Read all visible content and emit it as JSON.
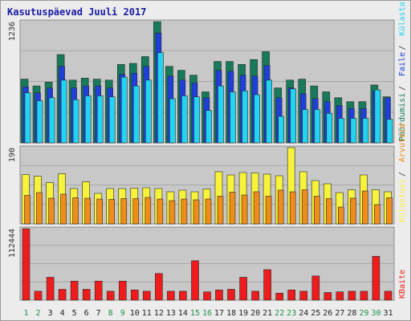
{
  "title": "Kasutuspäevad Juuli 2017",
  "colors": {
    "background": "#ececec",
    "panel": "#c8c8c8",
    "gridline": "#a8a8a8",
    "visits": "#177a5a",
    "pages": "#1f3fdb",
    "files": "#22d4f0",
    "hits": "#f7f23a",
    "sessions": "#f08c18",
    "bytes": "#ee1c1c",
    "label_weekday": "#222222",
    "label_weekend": "#1c8f4f",
    "title": "#1a1aa6"
  },
  "legend": {
    "upper": [
      {
        "key": "visits",
        "label": "Pöördumisi"
      },
      {
        "key": "pages",
        "label": "Faile"
      },
      {
        "key": "files",
        "label": "Külastatud lehti"
      }
    ],
    "middle": [
      {
        "key": "hits",
        "label": "Külastusi"
      },
      {
        "key": "sessions",
        "label": "Arvuteid"
      }
    ],
    "lower": [
      {
        "key": "bytes",
        "label": "KBaite"
      }
    ]
  },
  "chart_data": {
    "type": "bar",
    "title": "Kasutuspäevad Juuli 2017",
    "categories": [
      "1",
      "2",
      "3",
      "4",
      "5",
      "6",
      "7",
      "8",
      "9",
      "10",
      "11",
      "12",
      "13",
      "14",
      "15",
      "16",
      "17",
      "18",
      "19",
      "20",
      "21",
      "22",
      "23",
      "24",
      "25",
      "26",
      "27",
      "28",
      "29",
      "30",
      "31"
    ],
    "weekend_days": [
      "1",
      "2",
      "8",
      "9",
      "15",
      "16",
      "22",
      "23",
      "29",
      "30"
    ],
    "panels": [
      {
        "name": "upper",
        "ymax_label": "1236",
        "ylim": [
          0,
          1236
        ],
        "series": [
          {
            "name": "Pöördumisi",
            "color_key": "visits",
            "values": [
              650,
              580,
              620,
              900,
              640,
              660,
              650,
              640,
              800,
              810,
              880,
              1236,
              780,
              740,
              690,
              520,
              830,
              830,
              800,
              850,
              930,
              560,
              640,
              650,
              580,
              520,
              460,
              420,
              420,
              590,
              470
            ]
          },
          {
            "name": "Faile",
            "color_key": "pages",
            "values": [
              570,
              510,
              560,
              780,
              560,
              580,
              580,
              560,
              700,
              710,
              780,
              1120,
              680,
              640,
              610,
              460,
              740,
              730,
              690,
              680,
              790,
              460,
              560,
              500,
              450,
              420,
              380,
              350,
              350,
              530,
              460
            ]
          },
          {
            "name": "Külastatud lehti",
            "color_key": "files",
            "values": [
              510,
              430,
              460,
              640,
              440,
              480,
              480,
              470,
              670,
              580,
              640,
              920,
              450,
              480,
              470,
              330,
              580,
              520,
              530,
              490,
              640,
              270,
              550,
              340,
              340,
              300,
              250,
              250,
              250,
              540,
              240
            ]
          }
        ]
      },
      {
        "name": "middle",
        "ymax_label": "190",
        "ylim": [
          0,
          190
        ],
        "series": [
          {
            "name": "Külastusi",
            "color_key": "hits",
            "values": [
              123,
              119,
              103,
              125,
              88,
              105,
              76,
              88,
              88,
              89,
              90,
              88,
              80,
              84,
              80,
              87,
              130,
              122,
              128,
              127,
              124,
              120,
              190,
              130,
              108,
              100,
              78,
              85,
              122,
              85,
              80
            ]
          },
          {
            "name": "Arvuteid",
            "color_key": "sessions",
            "values": [
              71,
              78,
              64,
              74,
              65,
              64,
              62,
              61,
              63,
              63,
              66,
              62,
              58,
              62,
              60,
              62,
              69,
              79,
              72,
              80,
              69,
              84,
              80,
              85,
              69,
              63,
              42,
              64,
              82,
              48,
              65
            ]
          }
        ]
      },
      {
        "name": "lower",
        "ymax_label": "112444",
        "ylim": [
          0,
          112444
        ],
        "series": [
          {
            "name": "KBaite",
            "color_key": "bytes",
            "values": [
              112444,
              14000,
              36000,
              17000,
              30000,
              17000,
              30000,
              14000,
              30000,
              16000,
              14000,
              42000,
              14000,
              14000,
              62000,
              13000,
              16000,
              17000,
              36000,
              14000,
              48000,
              11000,
              16000,
              14000,
              38000,
              12000,
              13000,
              14000,
              14000,
              69000,
              14000
            ]
          }
        ]
      }
    ]
  }
}
